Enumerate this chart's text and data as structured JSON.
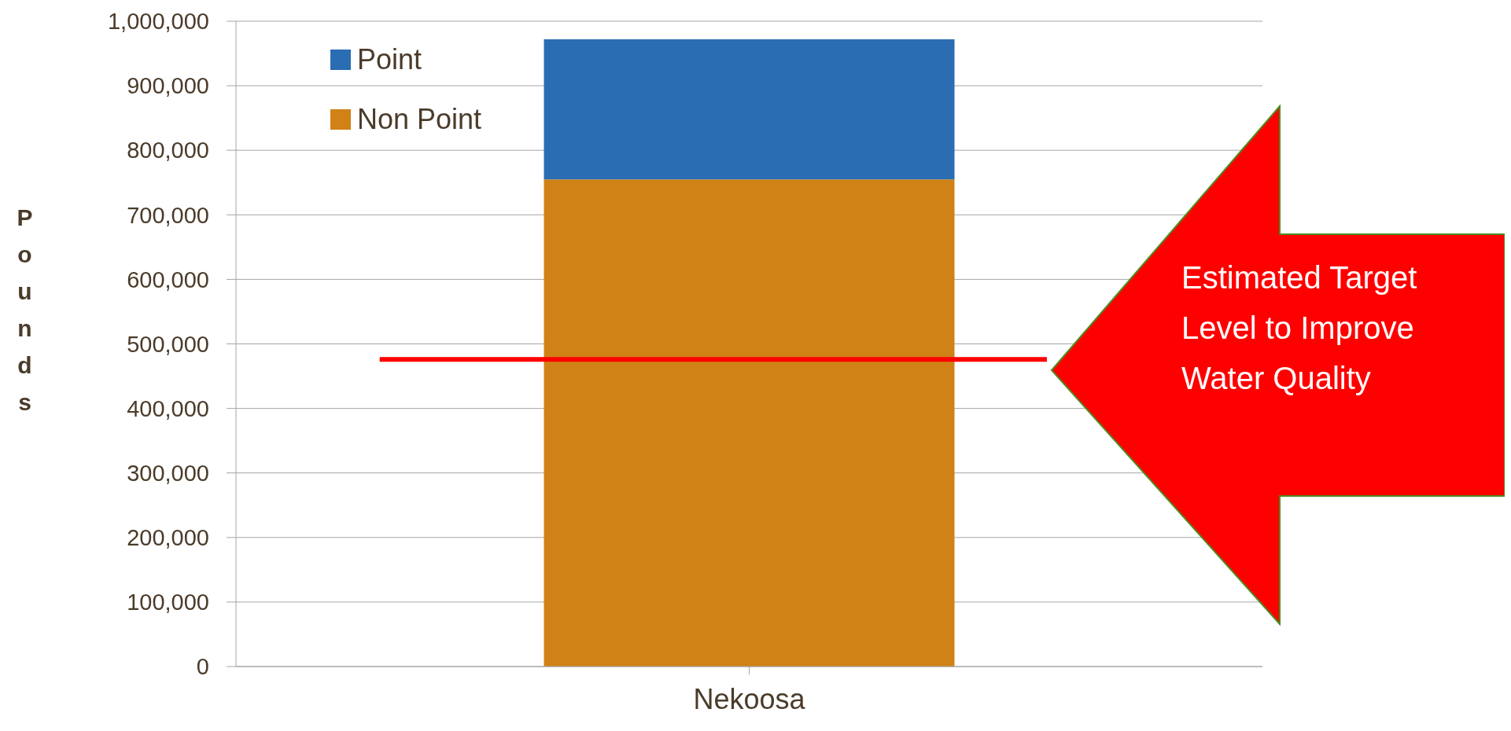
{
  "chart_data": {
    "type": "bar",
    "stacked": true,
    "ylabel": "Pounds",
    "categories": [
      "Nekoosa"
    ],
    "series": [
      {
        "name": "Non Point",
        "color": "#d08216",
        "values": [
          755000
        ]
      },
      {
        "name": "Point",
        "color": "#2b6db2",
        "values": [
          217000
        ]
      }
    ],
    "ylim": [
      0,
      1000000
    ],
    "yticks": [
      {
        "value": 0,
        "label": "0"
      },
      {
        "value": 100000,
        "label": "100,000"
      },
      {
        "value": 200000,
        "label": "200,000"
      },
      {
        "value": 300000,
        "label": "300,000"
      },
      {
        "value": 400000,
        "label": "400,000"
      },
      {
        "value": 500000,
        "label": "500,000"
      },
      {
        "value": 600000,
        "label": "600,000"
      },
      {
        "value": 700000,
        "label": "700,000"
      },
      {
        "value": 800000,
        "label": "800,000"
      },
      {
        "value": 900000,
        "label": "900,000"
      },
      {
        "value": 1000000,
        "label": "1,000,000"
      }
    ],
    "grid": "y",
    "legend": "top left",
    "ref_lines": [
      {
        "axis": "y",
        "value": 476000,
        "color": "#ff0000"
      }
    ],
    "annotations": [
      "Estimated Target Level to Improve Water Quality"
    ]
  }
}
